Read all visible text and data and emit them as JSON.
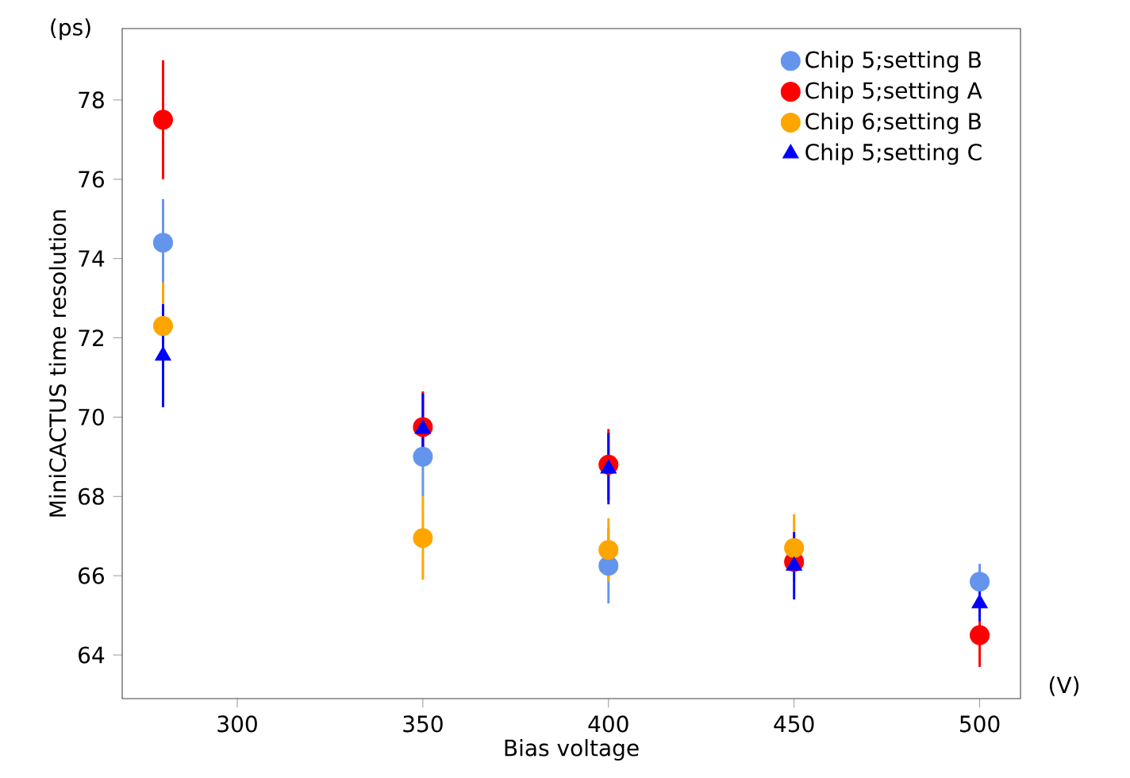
{
  "chart_data": {
    "type": "scatter",
    "xlabel": "Bias voltage",
    "ylabel": "MiniCACTUS time resolution",
    "annotations": [
      "(ps)",
      "(V)"
    ],
    "x": [
      280,
      350,
      400,
      450,
      500
    ],
    "series": [
      {
        "name": "Chip 5;setting B",
        "color": "#6495ed",
        "marker": "circle",
        "values": [
          74.4,
          69.0,
          66.25,
          null,
          65.85
        ],
        "errors": [
          1.1,
          1.0,
          0.95,
          null,
          0.45
        ]
      },
      {
        "name": "Chip 5;setting A",
        "color": "#ff0000",
        "marker": "circle",
        "values": [
          77.5,
          69.75,
          68.8,
          66.35,
          64.5
        ],
        "errors": [
          1.5,
          0.9,
          0.9,
          null,
          0.8
        ]
      },
      {
        "name": "Chip 6;setting B",
        "color": "#ffa500",
        "marker": "circle",
        "values": [
          72.3,
          66.95,
          66.65,
          66.7,
          null
        ],
        "errors": [
          1.1,
          1.05,
          0.8,
          0.85,
          null
        ]
      },
      {
        "name": "Chip 5;setting C",
        "color": "#0000ff",
        "marker": "triangle",
        "values": [
          71.55,
          69.7,
          68.7,
          66.25,
          65.3
        ],
        "errors": [
          1.3,
          0.9,
          0.9,
          0.85,
          0.45
        ]
      }
    ],
    "xlim": [
      269,
      511
    ],
    "ylim": [
      62.9,
      79.8
    ],
    "xticks": [
      300,
      350,
      400,
      450,
      500
    ],
    "yticks": [
      64,
      66,
      68,
      70,
      72,
      74,
      76,
      78
    ],
    "grid": false,
    "legend": "top right"
  }
}
